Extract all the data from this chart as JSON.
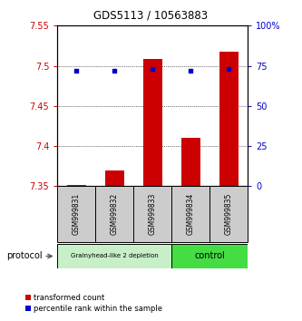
{
  "title": "GDS5113 / 10563883",
  "samples": [
    "GSM999831",
    "GSM999832",
    "GSM999833",
    "GSM999834",
    "GSM999835"
  ],
  "bar_values": [
    7.352,
    7.37,
    7.508,
    7.41,
    7.518
  ],
  "bar_base": 7.35,
  "percentile_values": [
    72,
    72,
    73,
    72,
    73
  ],
  "ylim_left": [
    7.35,
    7.55
  ],
  "ylim_right": [
    0,
    100
  ],
  "yticks_left": [
    7.35,
    7.4,
    7.45,
    7.5,
    7.55
  ],
  "ytick_labels_left": [
    "7.35",
    "7.4",
    "7.45",
    "7.5",
    "7.55"
  ],
  "yticks_right": [
    0,
    25,
    50,
    75,
    100
  ],
  "ytick_labels_right": [
    "0",
    "25",
    "50",
    "75",
    "100%"
  ],
  "bar_color": "#cc0000",
  "dot_color": "#0000cc",
  "left_tick_color": "#cc0000",
  "right_tick_color": "#0000cc",
  "group1_samples": [
    0,
    1,
    2
  ],
  "group2_samples": [
    3,
    4
  ],
  "group1_label": "Grainyhead-like 2 depletion",
  "group2_label": "control",
  "group1_color": "#c8f0c8",
  "group2_color": "#44dd44",
  "protocol_label": "protocol",
  "legend1_label": "transformed count",
  "legend2_label": "percentile rank within the sample",
  "bar_width": 0.5,
  "sample_box_color": "#cccccc",
  "arrow_color": "#555555"
}
